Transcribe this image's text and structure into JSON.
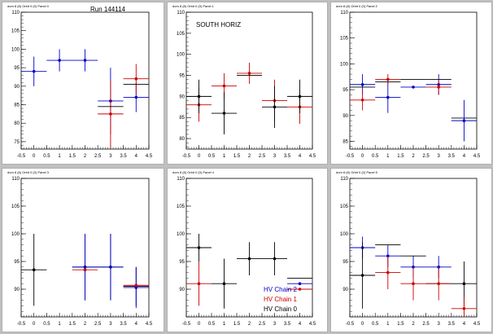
{
  "chart_data": [
    {
      "type": "scatter",
      "pad_title": "dom 8 (8) Orbit 0 (0) Panel 0",
      "annotation": "Run 144114",
      "xlim": [
        -0.5,
        4.5
      ],
      "ylim": [
        73,
        110
      ],
      "x_ticks": [
        -0.5,
        0,
        0.5,
        1,
        1.5,
        2,
        2.5,
        3,
        3.5,
        4,
        4.5
      ],
      "y_ticks": [
        75,
        80,
        85,
        90,
        95,
        100,
        105,
        110
      ],
      "series": [
        {
          "color": "#0000cc",
          "points": [
            {
              "x": 0,
              "y": 94,
              "xerr": 0.5,
              "yerr": 4
            },
            {
              "x": 1,
              "y": 97,
              "xerr": 0.5,
              "yerr": 3
            },
            {
              "x": 2,
              "y": 97,
              "xerr": 0.5,
              "yerr": 3
            },
            {
              "x": 3,
              "y": 86,
              "xerr": 0.5,
              "yerr": 9
            },
            {
              "x": 4,
              "y": 87,
              "xerr": 0.5,
              "yerr": 4
            }
          ]
        },
        {
          "color": "#cc0000",
          "points": [
            {
              "x": 3,
              "y": 82.5,
              "xerr": 0.5,
              "yerr": 9
            },
            {
              "x": 4,
              "y": 92,
              "xerr": 0.5,
              "yerr": 4
            }
          ]
        },
        {
          "color": "#000000",
          "points": [
            {
              "x": 3,
              "y": 84.5,
              "xerr": 0.5,
              "yerr": 0
            },
            {
              "x": 4,
              "y": 90.5,
              "xerr": 0.5,
              "yerr": 0
            }
          ]
        }
      ]
    },
    {
      "type": "scatter",
      "pad_title": "dom 8 (8) Orbit 0 (0) Panel 1",
      "annotation": "SOUTH HORIZ",
      "xlim": [
        -0.5,
        4.5
      ],
      "ylim": [
        77.5,
        110
      ],
      "x_ticks": [
        -0.5,
        0,
        0.5,
        1,
        1.5,
        2,
        2.5,
        3,
        3.5,
        4,
        4.5
      ],
      "y_ticks": [
        80,
        85,
        90,
        95,
        100,
        105,
        110
      ],
      "series": [
        {
          "color": "#cc0000",
          "points": [
            {
              "x": 0,
              "y": 88,
              "xerr": 0.5,
              "yerr": 4
            },
            {
              "x": 1,
              "y": 92.5,
              "xerr": 0.5,
              "yerr": 3
            },
            {
              "x": 2,
              "y": 95.5,
              "xerr": 0.5,
              "yerr": 2.5
            },
            {
              "x": 3,
              "y": 89,
              "xerr": 0.5,
              "yerr": 5
            },
            {
              "x": 4,
              "y": 87.5,
              "xerr": 0.5,
              "yerr": 4
            }
          ]
        },
        {
          "color": "#000000",
          "points": [
            {
              "x": 0,
              "y": 90,
              "xerr": 0.5,
              "yerr": 4
            },
            {
              "x": 1,
              "y": 86,
              "xerr": 0.5,
              "yerr": 5
            },
            {
              "x": 2,
              "y": 95,
              "xerr": 0.5,
              "yerr": 0
            },
            {
              "x": 3,
              "y": 87.5,
              "xerr": 0.5,
              "yerr": 5
            },
            {
              "x": 4,
              "y": 90,
              "xerr": 0.5,
              "yerr": 4
            }
          ]
        }
      ]
    },
    {
      "type": "scatter",
      "pad_title": "dom 8 (8) Orbit 0 (0) Panel 2",
      "annotation": "",
      "xlim": [
        -0.5,
        4.5
      ],
      "ylim": [
        83.5,
        110
      ],
      "x_ticks": [
        -0.5,
        0,
        0.5,
        1,
        1.5,
        2,
        2.5,
        3,
        3.5,
        4,
        4.5
      ],
      "y_ticks": [
        85,
        90,
        95,
        100,
        105,
        110
      ],
      "series": [
        {
          "color": "#0000cc",
          "points": [
            {
              "x": 0,
              "y": 96,
              "xerr": 0.5,
              "yerr": 2
            },
            {
              "x": 1,
              "y": 93.5,
              "xerr": 0.5,
              "yerr": 3
            },
            {
              "x": 2,
              "y": 95.5,
              "xerr": 0.5,
              "yerr": 0
            },
            {
              "x": 3,
              "y": 96,
              "xerr": 0.5,
              "yerr": 2
            },
            {
              "x": 4,
              "y": 89,
              "xerr": 0.5,
              "yerr": 4
            }
          ]
        },
        {
          "color": "#cc0000",
          "points": [
            {
              "x": 0,
              "y": 93,
              "xerr": 0.5,
              "yerr": 2
            },
            {
              "x": 1,
              "y": 97,
              "xerr": 0.5,
              "yerr": 1
            },
            {
              "x": 3,
              "y": 95.5,
              "xerr": 0.5,
              "yerr": 1.5
            }
          ]
        },
        {
          "color": "#000000",
          "points": [
            {
              "x": 0,
              "y": 95.5,
              "xerr": 0.5,
              "yerr": 0
            },
            {
              "x": 1,
              "y": 96.5,
              "xerr": 0.5,
              "yerr": 0
            },
            {
              "x": 2,
              "y": 97,
              "xerr": 0.5,
              "yerr": 0
            },
            {
              "x": 3,
              "y": 97,
              "xerr": 0.5,
              "yerr": 0
            },
            {
              "x": 4,
              "y": 89.5,
              "xerr": 0.5,
              "yerr": 0
            }
          ]
        }
      ]
    },
    {
      "type": "scatter",
      "pad_title": "dom 8 (8) Orbit 0 (0) Panel 3",
      "annotation": "",
      "xlim": [
        -0.5,
        4.5
      ],
      "ylim": [
        85,
        110
      ],
      "x_ticks": [
        -0.5,
        0,
        0.5,
        1,
        1.5,
        2,
        2.5,
        3,
        3.5,
        4,
        4.5
      ],
      "y_ticks": [
        90,
        95,
        100,
        105,
        110
      ],
      "series": [
        {
          "color": "#000000",
          "points": [
            {
              "x": 0,
              "y": 93.5,
              "xerr": 0.5,
              "yerr": 6.5
            },
            {
              "x": 2,
              "y": 94,
              "xerr": 0.5,
              "yerr": 6
            },
            {
              "x": 3,
              "y": 94,
              "xerr": 0.5,
              "yerr": 6
            },
            {
              "x": 4,
              "y": 90.5,
              "xerr": 0.5,
              "yerr": 3.5
            }
          ]
        },
        {
          "color": "#0000cc",
          "points": [
            {
              "x": 2,
              "y": 94,
              "xerr": 0.5,
              "yerr": 6
            },
            {
              "x": 3,
              "y": 94,
              "xerr": 0.5,
              "yerr": 6
            },
            {
              "x": 4,
              "y": 90.3,
              "xerr": 0.5,
              "yerr": 3.7
            }
          ]
        },
        {
          "color": "#cc0000",
          "points": [
            {
              "x": 2,
              "y": 93.5,
              "xerr": 0.5,
              "yerr": 0
            },
            {
              "x": 4,
              "y": 90.7,
              "xerr": 0.5,
              "yerr": 0
            }
          ]
        }
      ]
    },
    {
      "type": "scatter",
      "pad_title": "dom 8 (8) Orbit 0 (0) Panel 4",
      "annotation": "",
      "xlim": [
        -0.5,
        4.5
      ],
      "ylim": [
        85,
        110
      ],
      "x_ticks": [
        -0.5,
        0,
        0.5,
        1,
        1.5,
        2,
        2.5,
        3,
        3.5,
        4,
        4.5
      ],
      "y_ticks": [
        90,
        95,
        100,
        105,
        110
      ],
      "legend_position": "bottom-right",
      "legend": [
        {
          "label": "HV Chain 2",
          "color": "#0000cc"
        },
        {
          "label": "HV Chain 1",
          "color": "#cc0000"
        },
        {
          "label": "HV Chain 0",
          "color": "#000000"
        }
      ],
      "series": [
        {
          "color": "#000000",
          "points": [
            {
              "x": 0,
              "y": 97.5,
              "xerr": 0.5,
              "yerr": 2.5
            },
            {
              "x": 1,
              "y": 91,
              "xerr": 0.5,
              "yerr": 4.5
            },
            {
              "x": 2,
              "y": 95.5,
              "xerr": 0.5,
              "yerr": 3
            },
            {
              "x": 3,
              "y": 95.5,
              "xerr": 0.5,
              "yerr": 3
            },
            {
              "x": 4,
              "y": 92,
              "xerr": 0.5,
              "yerr": 0
            }
          ]
        },
        {
          "color": "#cc0000",
          "points": [
            {
              "x": 0,
              "y": 91,
              "xerr": 0.5,
              "yerr": 4
            },
            {
              "x": 4,
              "y": 90,
              "xerr": 0.5,
              "yerr": 0
            }
          ]
        },
        {
          "color": "#0000cc",
          "points": [
            {
              "x": 4,
              "y": 91,
              "xerr": 0.5,
              "yerr": 0
            }
          ]
        }
      ]
    },
    {
      "type": "scatter",
      "pad_title": "dom 8 (8) Orbit 0 (0) Panel 5",
      "annotation": "",
      "xlim": [
        -0.5,
        4.5
      ],
      "ylim": [
        85,
        110
      ],
      "x_ticks": [
        -0.5,
        0,
        0.5,
        1,
        1.5,
        2,
        2.5,
        3,
        3.5,
        4,
        4.5
      ],
      "y_ticks": [
        90,
        95,
        100,
        105,
        110
      ],
      "series": [
        {
          "color": "#0000cc",
          "points": [
            {
              "x": 0,
              "y": 97.5,
              "xerr": 0.5,
              "yerr": 2
            },
            {
              "x": 1,
              "y": 96,
              "xerr": 0.5,
              "yerr": 2
            },
            {
              "x": 2,
              "y": 94,
              "xerr": 0.5,
              "yerr": 2
            },
            {
              "x": 3,
              "y": 94,
              "xerr": 0.5,
              "yerr": 2
            }
          ]
        },
        {
          "color": "#000000",
          "points": [
            {
              "x": 0,
              "y": 92.5,
              "xerr": 0.5,
              "yerr": 6
            },
            {
              "x": 1,
              "y": 98,
              "xerr": 0.5,
              "yerr": 0
            },
            {
              "x": 2,
              "y": 96,
              "xerr": 0.5,
              "yerr": 0
            },
            {
              "x": 3,
              "y": 91,
              "xerr": 0.5,
              "yerr": 0
            },
            {
              "x": 4,
              "y": 91,
              "xerr": 0.5,
              "yerr": 4
            }
          ]
        },
        {
          "color": "#cc0000",
          "points": [
            {
              "x": 1,
              "y": 93,
              "xerr": 0.5,
              "yerr": 3
            },
            {
              "x": 2,
              "y": 91,
              "xerr": 0.5,
              "yerr": 3
            },
            {
              "x": 3,
              "y": 91,
              "xerr": 0.5,
              "yerr": 3
            },
            {
              "x": 4,
              "y": 86.5,
              "xerr": 0.5,
              "yerr": 2
            }
          ]
        }
      ]
    }
  ]
}
